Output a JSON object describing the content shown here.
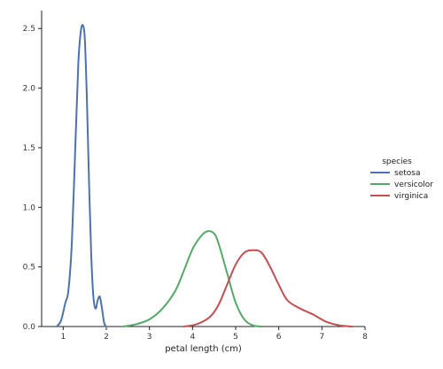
{
  "chart_data": {
    "type": "line",
    "title": "",
    "xlabel": "petal length (cm)",
    "ylabel": "",
    "xlim": [
      0.5,
      8
    ],
    "ylim": [
      0,
      2.65
    ],
    "xticks": [
      1,
      2,
      3,
      4,
      5,
      6,
      7,
      8
    ],
    "xtick_labels": [
      "1",
      "2",
      "3",
      "4",
      "5",
      "6",
      "7",
      "8"
    ],
    "yticks": [
      0.0,
      0.5,
      1.0,
      1.5,
      2.0,
      2.5
    ],
    "ytick_labels": [
      "0.0",
      "0.5",
      "1.0",
      "1.5",
      "2.0",
      "2.5"
    ],
    "grid": false,
    "legend": {
      "title": "species",
      "placement": "right"
    },
    "series": [
      {
        "name": "setosa",
        "color": "#4c72b0",
        "x": [
          0.85,
          0.95,
          1.05,
          1.12,
          1.2,
          1.28,
          1.35,
          1.4,
          1.45,
          1.5,
          1.55,
          1.6,
          1.65,
          1.7,
          1.75,
          1.8,
          1.85,
          1.9,
          1.95,
          2.0
        ],
        "y": [
          0.0,
          0.05,
          0.2,
          0.3,
          0.7,
          1.5,
          2.2,
          2.45,
          2.53,
          2.42,
          1.9,
          1.2,
          0.6,
          0.25,
          0.15,
          0.22,
          0.25,
          0.15,
          0.03,
          0.0
        ]
      },
      {
        "name": "versicolor",
        "color": "#55a868",
        "x": [
          2.4,
          2.7,
          3.0,
          3.3,
          3.6,
          3.8,
          4.0,
          4.2,
          4.35,
          4.5,
          4.6,
          4.8,
          5.0,
          5.2,
          5.4,
          5.6
        ],
        "y": [
          0.0,
          0.02,
          0.06,
          0.15,
          0.3,
          0.47,
          0.65,
          0.76,
          0.8,
          0.78,
          0.7,
          0.45,
          0.2,
          0.06,
          0.01,
          0.0
        ]
      },
      {
        "name": "virginica",
        "color": "#c44e52",
        "x": [
          3.8,
          4.1,
          4.4,
          4.6,
          4.8,
          5.0,
          5.2,
          5.4,
          5.6,
          5.8,
          6.0,
          6.2,
          6.5,
          6.8,
          7.1,
          7.4,
          7.7
        ],
        "y": [
          0.0,
          0.02,
          0.08,
          0.18,
          0.35,
          0.52,
          0.62,
          0.64,
          0.62,
          0.5,
          0.35,
          0.22,
          0.15,
          0.1,
          0.04,
          0.01,
          0.0
        ]
      }
    ]
  }
}
